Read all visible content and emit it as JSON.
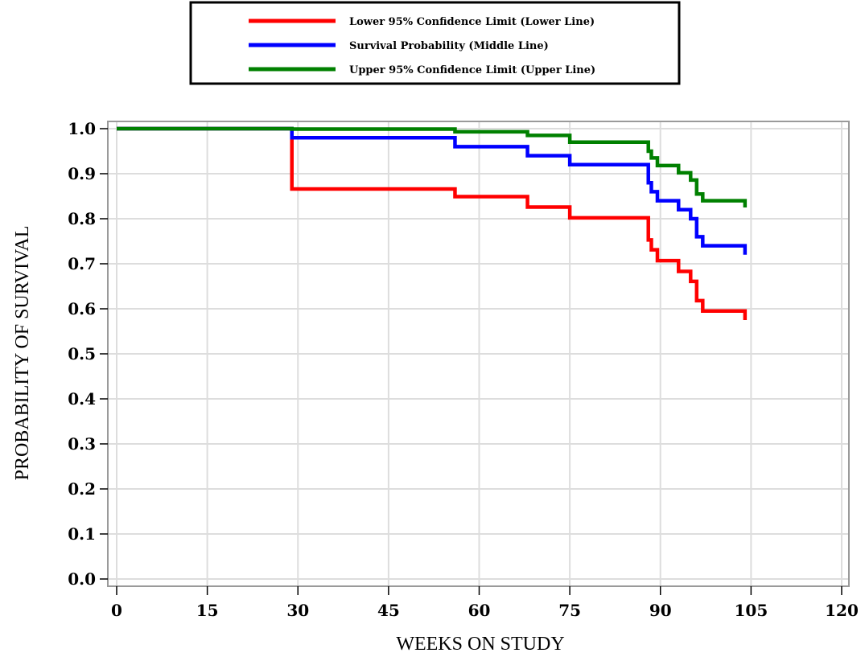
{
  "chart_data": {
    "type": "line",
    "step": true,
    "xlabel": "WEEKS ON STUDY",
    "ylabel": "PROBABILITY OF SURVIVAL",
    "xlim": [
      0,
      120
    ],
    "ylim": [
      0,
      1
    ],
    "xticks": [
      "0",
      "15",
      "30",
      "45",
      "60",
      "75",
      "90",
      "105",
      "120"
    ],
    "yticks": [
      "0.0",
      "0.1",
      "0.2",
      "0.3",
      "0.4",
      "0.5",
      "0.6",
      "0.7",
      "0.8",
      "0.9",
      "1.0"
    ],
    "grid": true,
    "legend_position": "top-center",
    "series": [
      {
        "name": "Lower 95% Confidence Limit (Lower Line)",
        "color": "#ff0000",
        "x": [
          0,
          29,
          56,
          68,
          75,
          88,
          88.5,
          89.5,
          93,
          95,
          96,
          97,
          104
        ],
        "y": [
          1.0,
          0.866,
          0.849,
          0.826,
          0.802,
          0.753,
          0.731,
          0.707,
          0.683,
          0.661,
          0.618,
          0.595,
          0.595
        ],
        "end_y": 0.575
      },
      {
        "name": "Survival Probability (Middle Line)",
        "color": "#0000ff",
        "x": [
          0,
          29,
          56,
          68,
          75,
          88,
          88.5,
          89.5,
          93,
          95,
          96,
          97,
          104
        ],
        "y": [
          1.0,
          0.98,
          0.96,
          0.94,
          0.92,
          0.88,
          0.86,
          0.84,
          0.82,
          0.8,
          0.76,
          0.74,
          0.74
        ],
        "end_y": 0.72
      },
      {
        "name": "Upper 95% Confidence Limit (Upper Line)",
        "color": "#008000",
        "x": [
          0,
          29,
          56,
          68,
          75,
          88,
          88.5,
          89.5,
          93,
          95,
          96,
          97,
          104
        ],
        "y": [
          1.0,
          0.999,
          0.993,
          0.985,
          0.97,
          0.95,
          0.935,
          0.918,
          0.902,
          0.886,
          0.855,
          0.84,
          0.84
        ],
        "end_y": 0.825
      }
    ]
  }
}
